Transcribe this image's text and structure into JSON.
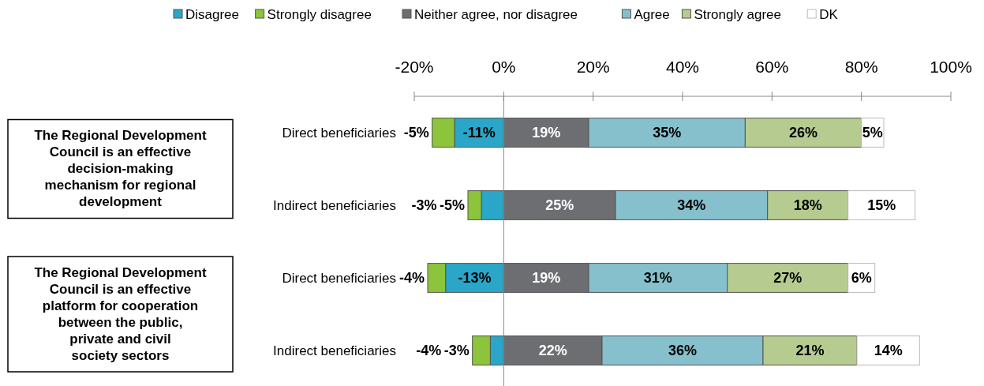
{
  "chart_data": {
    "type": "bar",
    "orientation": "horizontal",
    "stacked": true,
    "legend": "top",
    "categories": [
      "Direct beneficiaries",
      "Indirect beneficiaries",
      "Direct beneficiaries",
      "Indirect beneficiaries"
    ],
    "series": [
      {
        "name": "Disagree",
        "color": "#2aa6c8",
        "values": [
          -11,
          -5,
          -13,
          -3
        ],
        "value_labels": [
          "-11%",
          "-5%",
          "-13%",
          "-3%"
        ]
      },
      {
        "name": "Strongly disagree",
        "color": "#8cc43c",
        "values": [
          -5,
          -3,
          -4,
          -4
        ],
        "value_labels": [
          "-5%",
          "-3%",
          "-4%",
          "-4%"
        ]
      },
      {
        "name": "Neither agree, nor disagree",
        "color": "#6d6e71",
        "values": [
          19,
          25,
          19,
          22
        ],
        "value_labels": [
          "19%",
          "25%",
          "19%",
          "22%"
        ]
      },
      {
        "name": "Agree",
        "color": "#86c0cc",
        "values": [
          35,
          34,
          31,
          36
        ],
        "value_labels": [
          "35%",
          "34%",
          "31%",
          "36%"
        ]
      },
      {
        "name": "Strongly agree",
        "color": "#b5cb8f",
        "values": [
          26,
          18,
          27,
          21
        ],
        "value_labels": [
          "26%",
          "18%",
          "27%",
          "21%"
        ]
      },
      {
        "name": "DK",
        "color": "#ffffff",
        "values": [
          5,
          15,
          6,
          14
        ],
        "value_labels": [
          "5%",
          "15%",
          "6%",
          "14%"
        ]
      }
    ],
    "xlim": [
      -20,
      100
    ],
    "xticks": [
      {
        "value": -20,
        "label": "-20%"
      },
      {
        "value": 0,
        "label": "0%"
      },
      {
        "value": 20,
        "label": "20%"
      },
      {
        "value": 40,
        "label": "40%"
      },
      {
        "value": 60,
        "label": "60%"
      },
      {
        "value": 80,
        "label": "80%"
      },
      {
        "value": 100,
        "label": "100%"
      }
    ],
    "annotations": [
      "The Regional Development Council is an effective decision-making mechanism for regional development",
      "The Regional Development Council is an effective platform for cooperation between the public, private and civil society sectors"
    ]
  }
}
